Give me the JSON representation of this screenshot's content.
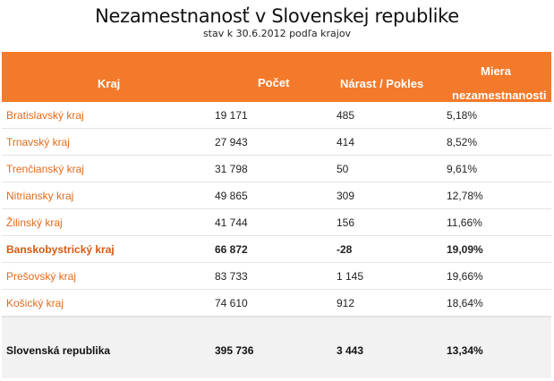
{
  "title": "Nezamestnanosť v Slovenskej republike",
  "subtitle": "stav k 30.6.2012 podľa krajov",
  "headers": {
    "kraj": "Kraj",
    "pocet": "Počet",
    "narast": "Nárast / Pokles",
    "miera_line1": "Miera",
    "miera_line2": "nezamestnanosti"
  },
  "rows": [
    {
      "name": "Bratislavský kraj",
      "pocet": "19 171",
      "narast": "485",
      "miera": "5,18%"
    },
    {
      "name": "Trnavský kraj",
      "pocet": "27 943",
      "narast": "414",
      "miera": "8,52%"
    },
    {
      "name": "Trenčianský kraj",
      "pocet": "31 798",
      "narast": "50",
      "miera": "9,61%"
    },
    {
      "name": "Nitriansky kraj",
      "pocet": "49 865",
      "narast": "309",
      "miera": "12,78%"
    },
    {
      "name": "Žilinský kraj",
      "pocet": "41 744",
      "narast": "156",
      "miera": "11,66%"
    },
    {
      "name": "Banskobystrický kraj",
      "pocet": "66 872",
      "narast": "-28",
      "miera": "19,09%"
    },
    {
      "name": "Prešovský kraj",
      "pocet": "83 733",
      "narast": "1 145",
      "miera": "19,66%"
    },
    {
      "name": "Košický kraj",
      "pocet": "74 610",
      "narast": "912",
      "miera": "18,64%"
    }
  ],
  "total": {
    "name": "Slovenská republika",
    "pocet": "395 736",
    "narast": "3 443",
    "miera": "13,34%"
  },
  "colors": {
    "header_bg": "#f47a2b",
    "region_link": "#e26a1c",
    "total_bg": "#f2f2f2"
  }
}
